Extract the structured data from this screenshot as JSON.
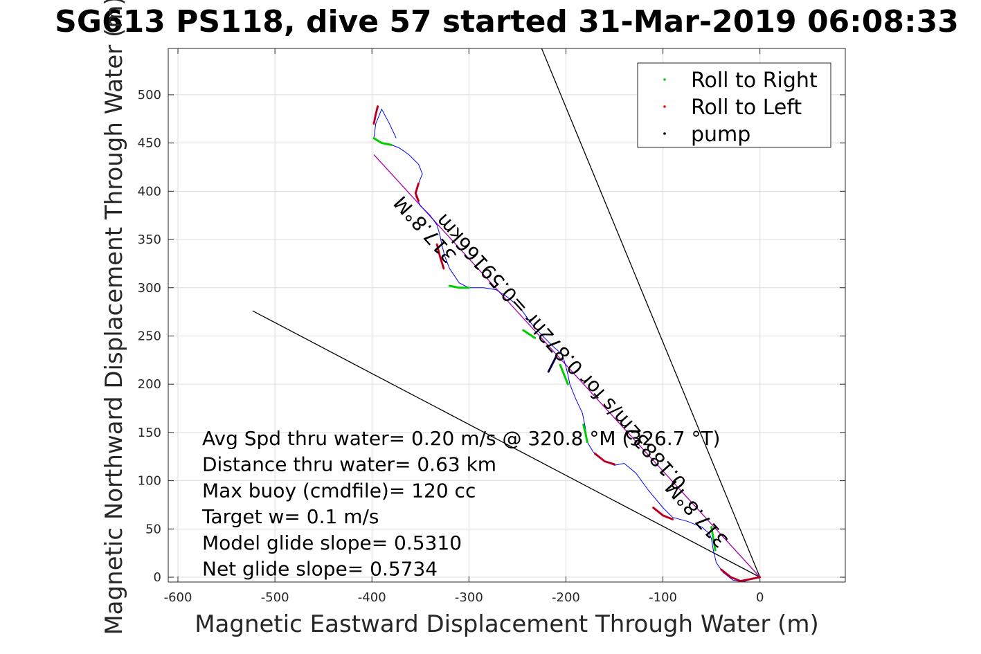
{
  "chart_data": {
    "type": "line",
    "title": "SG613 PS118, dive 57 started 31-Mar-2019 06:08:33",
    "xlabel": "Magnetic Eastward Displacement Through Water (m)",
    "ylabel": "Magnetic Northward Displacement Through Water (m)",
    "xlim": [
      -610,
      88
    ],
    "ylim": [
      -5,
      548
    ],
    "xticks": [
      -600,
      -500,
      -400,
      -300,
      -200,
      -100,
      0
    ],
    "yticks": [
      0,
      50,
      100,
      150,
      200,
      250,
      300,
      350,
      400,
      450,
      500
    ],
    "grid": true,
    "legend": {
      "placement": "top-right",
      "entries": [
        {
          "label": "Roll to Right",
          "color": "#00cc00"
        },
        {
          "label": "Roll to Left",
          "color": "#ff0000"
        },
        {
          "label": "pump",
          "color": "#000000"
        }
      ]
    },
    "track": {
      "name": "track",
      "color": "#0000ff",
      "x": [
        0,
        -8,
        -18,
        -28,
        -38,
        -45,
        -48,
        -50,
        -52,
        -60,
        -75,
        -90,
        -100,
        -115,
        -128,
        -140,
        -150,
        -160,
        -172,
        -178,
        -180,
        -183,
        -190,
        -196,
        -198,
        -200,
        -202,
        -205,
        -212,
        -222,
        -235,
        -248,
        -260,
        -272,
        -285,
        -300,
        -310,
        -320,
        -325,
        -328,
        -330,
        -333,
        -340,
        -350,
        -355,
        -352,
        -348,
        -352,
        -362,
        -372,
        -380,
        -390,
        -398,
        -396,
        -390,
        -382,
        -375
      ],
      "y": [
        0,
        -2,
        -5,
        -3,
        5,
        15,
        28,
        40,
        45,
        52,
        58,
        62,
        72,
        90,
        108,
        118,
        116,
        120,
        130,
        140,
        155,
        170,
        185,
        200,
        210,
        218,
        225,
        232,
        238,
        248,
        262,
        280,
        290,
        298,
        300,
        300,
        305,
        320,
        333,
        345,
        355,
        365,
        375,
        385,
        395,
        408,
        418,
        428,
        438,
        445,
        448,
        450,
        455,
        470,
        485,
        470,
        455
      ]
    },
    "roll_right": [
      {
        "x": [
          -50,
          -48,
          -46
        ],
        "y": [
          52,
          40,
          28
        ]
      },
      {
        "x": [
          -178,
          -180,
          -182
        ],
        "y": [
          140,
          150,
          158
        ]
      },
      {
        "x": [
          -198,
          -202,
          -206
        ],
        "y": [
          200,
          210,
          220
        ]
      },
      {
        "x": [
          -232,
          -238,
          -244
        ],
        "y": [
          248,
          252,
          256
        ]
      },
      {
        "x": [
          -300,
          -310,
          -320
        ],
        "y": [
          300,
          300,
          302
        ]
      },
      {
        "x": [
          -380,
          -390,
          -398
        ],
        "y": [
          448,
          450,
          455
        ]
      }
    ],
    "roll_left": [
      {
        "x": [
          -40,
          -30,
          -20,
          -10,
          0
        ],
        "y": [
          8,
          0,
          -4,
          -2,
          0
        ]
      },
      {
        "x": [
          -90,
          -100,
          -110
        ],
        "y": [
          60,
          64,
          72
        ]
      },
      {
        "x": [
          -150,
          -160,
          -170
        ],
        "y": [
          117,
          120,
          128
        ]
      },
      {
        "x": [
          -326,
          -330,
          -333
        ],
        "y": [
          320,
          333,
          345
        ]
      },
      {
        "x": [
          -352,
          -355,
          -352
        ],
        "y": [
          390,
          398,
          408
        ]
      },
      {
        "x": [
          -398,
          -396,
          -394
        ],
        "y": [
          470,
          480,
          488
        ]
      }
    ],
    "pump": [
      {
        "x": [
          -218,
          -214,
          -210
        ],
        "y": [
          213,
          221,
          229
        ]
      }
    ],
    "lines": [
      {
        "name": "heading line 1",
        "color": "#000000",
        "x": [
          0,
          -225
        ],
        "y": [
          0,
          548
        ]
      },
      {
        "name": "heading line 2",
        "color": "#000000",
        "x": [
          0,
          -523
        ],
        "y": [
          0,
          276
        ]
      },
      {
        "name": "heading line 3",
        "color": "#aa00aa",
        "x": [
          0,
          -398
        ],
        "y": [
          0,
          438
        ]
      }
    ],
    "segment_labels": [
      {
        "text": "317.8°M",
        "x": -340,
        "y": 365,
        "angle": 48
      },
      {
        "text": "0.18832m/s for 0.872hr =0.59166km",
        "x": -200,
        "y": 238,
        "angle": 48
      },
      {
        "text": "317.8°M",
        "x": -60,
        "y": 70,
        "angle": 48
      }
    ],
    "annotations": [
      "Avg Spd thru water=  0.20 m/s @ 320.8 °M (326.7 °T)",
      "Distance thru water=  0.63 km",
      "Max buoy (cmdfile)= 120 cc",
      "Target w= 0.1 m/s",
      "Model glide slope= 0.5310",
      "Net glide slope= 0.5734"
    ]
  }
}
